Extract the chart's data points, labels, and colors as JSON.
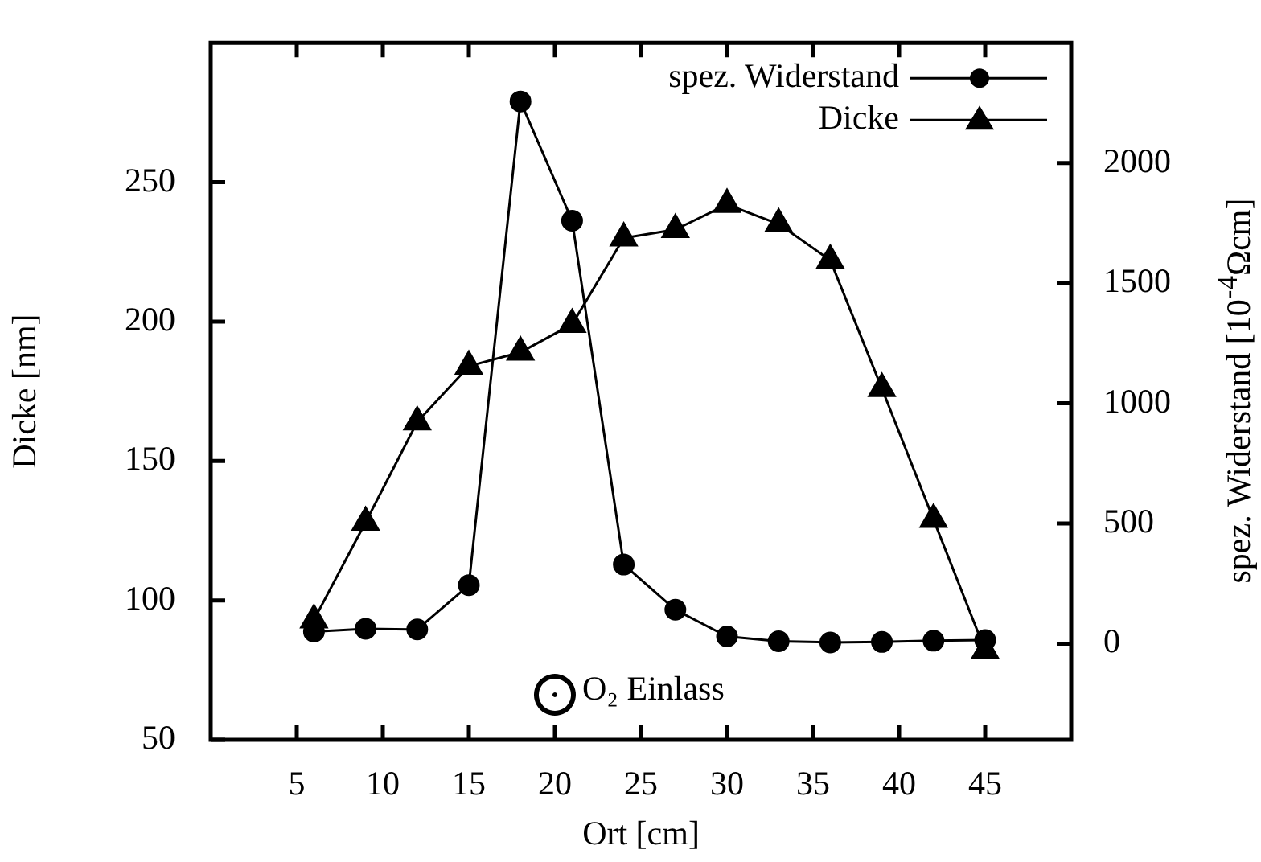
{
  "chart_data": {
    "type": "line",
    "xlabel": "Ort [cm]",
    "ylabel": "Dicke [nm]",
    "y2label": "spez. Widerstand [10$^{-4}$Ωcm]",
    "x": [
      6,
      9,
      12,
      15,
      18,
      21,
      24,
      27,
      30,
      33,
      36,
      39,
      42,
      45
    ],
    "series": [
      {
        "name": "spez. Widerstand",
        "color": "#000000",
        "axis": "y2",
        "marker": "circle",
        "values": [
          50,
          62,
          59,
          243,
          2256,
          1760,
          329,
          141,
          30,
          10,
          5,
          7,
          12,
          15
        ]
      },
      {
        "name": "Dicke",
        "color": "#000000",
        "marker": "triangle",
        "values": [
          93,
          128,
          164,
          184,
          189,
          199,
          230,
          233,
          242,
          235,
          222,
          176,
          129,
          82
        ]
      }
    ],
    "xlim": [
      0,
      50
    ],
    "xticks": [
      5,
      10,
      15,
      20,
      25,
      30,
      35,
      40,
      45
    ],
    "ylim": [
      50,
      300
    ],
    "yticks": [
      50,
      100,
      150,
      200,
      250
    ],
    "y2lim": [
      -400,
      2500
    ],
    "y2ticks": [
      0,
      500,
      1000,
      1500,
      2000
    ],
    "legend": "top right",
    "line_style": "solid",
    "annotations": [
      {
        "text": "O₂ Einlass",
        "x": 20,
        "y": 66
      }
    ]
  }
}
